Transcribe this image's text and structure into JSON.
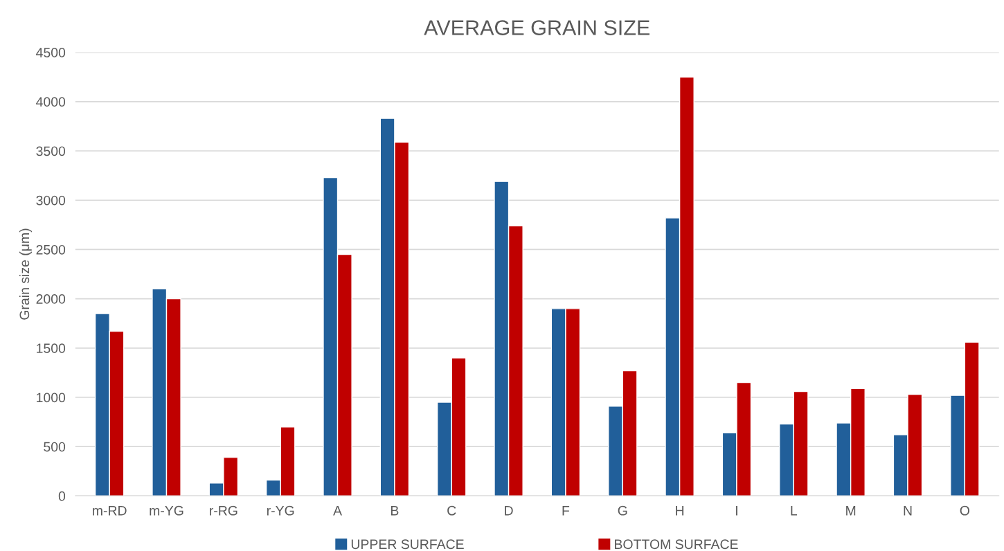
{
  "chart_data": {
    "type": "bar",
    "title": "AVERAGE GRAIN SIZE",
    "ylabel": "Grain size (μm)",
    "categories": [
      "m-RD",
      "m-YG",
      "r-RG",
      "r-YG",
      "A",
      "B",
      "C",
      "D",
      "F",
      "G",
      "H",
      "I",
      "L",
      "M",
      "N",
      "O"
    ],
    "series": [
      {
        "name": "UPPER SURFACE",
        "color": "#215f9a",
        "values": [
          1850,
          2100,
          130,
          160,
          3230,
          3830,
          950,
          3190,
          1900,
          910,
          2820,
          640,
          730,
          740,
          620,
          1020
        ]
      },
      {
        "name": "BOTTOM SURFACE",
        "color": "#c00000",
        "values": [
          1670,
          2000,
          390,
          700,
          2450,
          3590,
          1400,
          2740,
          1900,
          1270,
          4250,
          1150,
          1060,
          1090,
          1030,
          1560
        ]
      }
    ],
    "ylim": [
      0,
      4500
    ],
    "yticks": [
      0,
      500,
      1000,
      1500,
      2000,
      2500,
      3000,
      3500,
      4000,
      4500
    ],
    "grid": "y",
    "legend": "bottom"
  }
}
